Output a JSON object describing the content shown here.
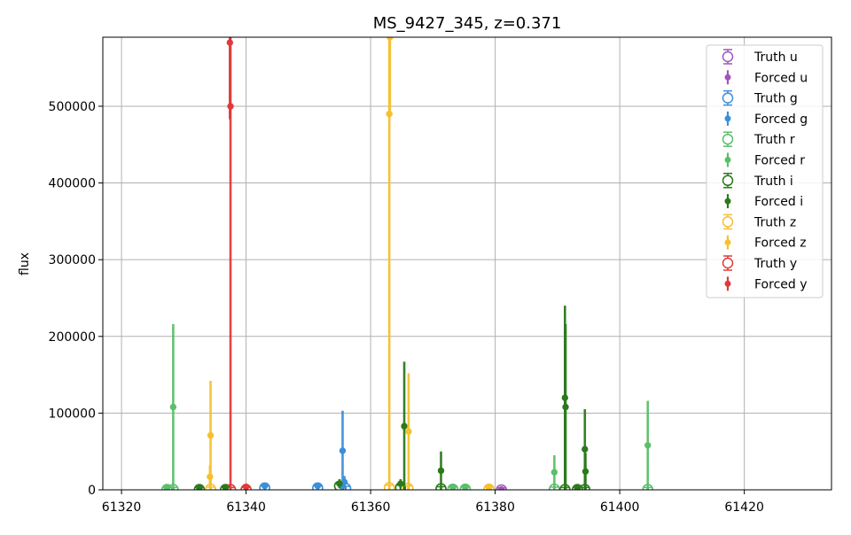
{
  "chart_data": {
    "type": "scatter",
    "title": "MS_9427_345, z=0.371",
    "xlabel": "",
    "ylabel": "flux",
    "xlim": [
      61317,
      61434
    ],
    "ylim": [
      0,
      590000
    ],
    "xticks": [
      61320,
      61340,
      61360,
      61380,
      61400,
      61420
    ],
    "yticks": [
      0,
      100000,
      200000,
      300000,
      400000,
      500000
    ],
    "xtick_labels": [
      "61320",
      "61340",
      "61360",
      "61380",
      "61400",
      "61420"
    ],
    "ytick_labels": [
      "0",
      "100000",
      "200000",
      "300000",
      "400000",
      "500000"
    ],
    "grid": true,
    "legend_position": "upper right",
    "series": [
      {
        "name": "Truth u",
        "band": "u",
        "kind": "truth",
        "color": "#a155b9",
        "points": [
          {
            "x": 61381.0,
            "y": 0,
            "yerr": 2500
          }
        ]
      },
      {
        "name": "Forced u",
        "band": "u",
        "kind": "forced",
        "color": "#a155b9",
        "points": [
          {
            "x": 61381.0,
            "y": 500,
            "yerr": 2500
          }
        ]
      },
      {
        "name": "Truth g",
        "band": "g",
        "kind": "truth",
        "color": "#3a8fdb",
        "points": [
          {
            "x": 61343.0,
            "y": 2500,
            "yerr": 2500
          },
          {
            "x": 61351.5,
            "y": 2500,
            "yerr": 2500
          },
          {
            "x": 61356.0,
            "y": 2000,
            "yerr": 2500
          }
        ]
      },
      {
        "name": "Forced g",
        "band": "g",
        "kind": "forced",
        "color": "#3a8fdb",
        "points": [
          {
            "x": 61343.0,
            "y": 5000,
            "yerr": 3000
          },
          {
            "x": 61351.5,
            "y": 5000,
            "yerr": 3000
          },
          {
            "x": 61355.5,
            "y": 51000,
            "yerr": 52000
          },
          {
            "x": 61355.8,
            "y": 10000,
            "yerr": 8000
          }
        ]
      },
      {
        "name": "Truth r",
        "band": "r",
        "kind": "truth",
        "color": "#5bbf6a",
        "points": [
          {
            "x": 61327.3,
            "y": 500,
            "yerr": 2500
          },
          {
            "x": 61328.3,
            "y": 500,
            "yerr": 2500
          },
          {
            "x": 61373.2,
            "y": 1000,
            "yerr": 2500
          },
          {
            "x": 61375.2,
            "y": 1000,
            "yerr": 2500
          },
          {
            "x": 61389.5,
            "y": 1000,
            "yerr": 2500
          },
          {
            "x": 61404.5,
            "y": 500,
            "yerr": 2500
          }
        ]
      },
      {
        "name": "Forced r",
        "band": "r",
        "kind": "forced",
        "color": "#5bbf6a",
        "points": [
          {
            "x": 61327.3,
            "y": 2000,
            "yerr": 3000
          },
          {
            "x": 61328.3,
            "y": 108000,
            "yerr": 108000
          },
          {
            "x": 61373.2,
            "y": 3000,
            "yerr": 3000
          },
          {
            "x": 61375.2,
            "y": 3000,
            "yerr": 3000
          },
          {
            "x": 61389.5,
            "y": 23000,
            "yerr": 22000
          },
          {
            "x": 61404.5,
            "y": 58000,
            "yerr": 58000
          }
        ]
      },
      {
        "name": "Truth i",
        "band": "i",
        "kind": "truth",
        "color": "#2a7a1a",
        "points": [
          {
            "x": 61332.5,
            "y": 500,
            "yerr": 2500
          },
          {
            "x": 61336.7,
            "y": 500,
            "yerr": 2500
          },
          {
            "x": 61355.0,
            "y": 5000,
            "yerr": 3000
          },
          {
            "x": 61364.8,
            "y": 3000,
            "yerr": 3000
          },
          {
            "x": 61371.3,
            "y": 1500,
            "yerr": 2500
          },
          {
            "x": 61391.2,
            "y": 500,
            "yerr": 2500
          },
          {
            "x": 61393.2,
            "y": 500,
            "yerr": 2500
          },
          {
            "x": 61394.4,
            "y": 500,
            "yerr": 2500
          }
        ]
      },
      {
        "name": "Forced i",
        "band": "i",
        "kind": "forced",
        "color": "#2a7a1a",
        "points": [
          {
            "x": 61332.5,
            "y": 2000,
            "yerr": 3000
          },
          {
            "x": 61336.7,
            "y": 3000,
            "yerr": 3000
          },
          {
            "x": 61355.0,
            "y": 8000,
            "yerr": 6000
          },
          {
            "x": 61364.8,
            "y": 8000,
            "yerr": 6000
          },
          {
            "x": 61365.4,
            "y": 83000,
            "yerr": 84000
          },
          {
            "x": 61371.3,
            "y": 25000,
            "yerr": 25000
          },
          {
            "x": 61391.2,
            "y": 120000,
            "yerr": 120000
          },
          {
            "x": 61391.3,
            "y": 108000,
            "yerr": 108000
          },
          {
            "x": 61393.2,
            "y": 2000,
            "yerr": 3000
          },
          {
            "x": 61394.4,
            "y": 53000,
            "yerr": 52000
          },
          {
            "x": 61394.5,
            "y": 24000,
            "yerr": 24000
          }
        ]
      },
      {
        "name": "Truth z",
        "band": "z",
        "kind": "truth",
        "color": "#f5c12e",
        "points": [
          {
            "x": 61334.3,
            "y": 1000,
            "yerr": 2500
          },
          {
            "x": 61363.0,
            "y": 3000,
            "yerr": 3000
          },
          {
            "x": 61366.0,
            "y": 2000,
            "yerr": 3000
          },
          {
            "x": 61379.0,
            "y": 1000,
            "yerr": 2500
          }
        ]
      },
      {
        "name": "Forced z",
        "band": "z",
        "kind": "forced",
        "color": "#f5c12e",
        "points": [
          {
            "x": 61334.3,
            "y": 71000,
            "yerr": 71000
          },
          {
            "x": 61334.2,
            "y": 17000,
            "yerr": 15000
          },
          {
            "x": 61363.1,
            "y": 590000,
            "yerr": 100000
          },
          {
            "x": 61363.0,
            "y": 490000,
            "yerr": 490000
          },
          {
            "x": 61366.1,
            "y": 76000,
            "yerr": 76000
          },
          {
            "x": 61379.0,
            "y": 3000,
            "yerr": 3000
          }
        ]
      },
      {
        "name": "Truth y",
        "band": "y",
        "kind": "truth",
        "color": "#e03a3a",
        "points": [
          {
            "x": 61337.5,
            "y": 500,
            "yerr": 2500
          },
          {
            "x": 61340.0,
            "y": 500,
            "yerr": 2500
          }
        ]
      },
      {
        "name": "Forced y",
        "band": "y",
        "kind": "forced",
        "color": "#e03a3a",
        "points": [
          {
            "x": 61337.4,
            "y": 583000,
            "yerr": 100000
          },
          {
            "x": 61337.5,
            "y": 500000,
            "yerr": 500000
          },
          {
            "x": 61340.0,
            "y": 4000,
            "yerr": 3000
          }
        ]
      }
    ]
  }
}
